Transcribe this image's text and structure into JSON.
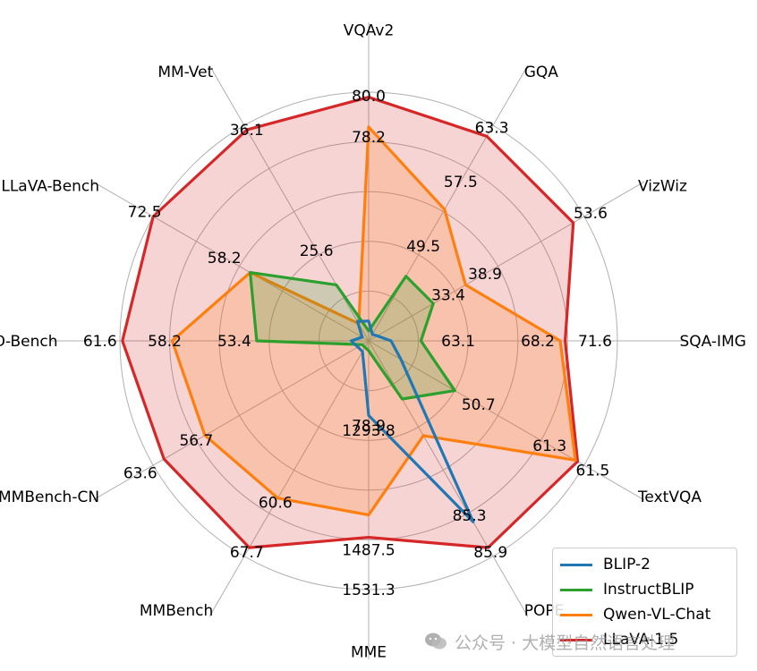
{
  "chart_data": {
    "type": "radar",
    "axes": [
      "VQAv2",
      "GQA",
      "VizWiz",
      "SQA-IMG",
      "TextVQA",
      "POPE",
      "MME",
      "MMBench",
      "MMBench-CN",
      "SEED-Bench",
      "LLaVA-Bench",
      "MM-Vet"
    ],
    "rings": 5,
    "series": [
      {
        "name": "BLIP-2",
        "color": "#1f77b4",
        "fill": false,
        "values": [
          0.08,
          0.03,
          0.04,
          0.09,
          0.15,
          0.84,
          0.3,
          0.05,
          0.05,
          0.07,
          0.03,
          0.09
        ]
      },
      {
        "name": "InstructBLIP",
        "color": "#2ca02c",
        "fill": true,
        "values": [
          0.04,
          0.3,
          0.3,
          0.21,
          0.4,
          0.27,
          0.04,
          0.03,
          0.03,
          0.45,
          0.55,
          0.26
        ]
      },
      {
        "name": "Qwen-VL-Chat",
        "color": "#ff7f0e",
        "fill": true,
        "values": [
          0.86,
          0.61,
          0.45,
          0.77,
          0.96,
          0.44,
          0.7,
          0.73,
          0.76,
          0.79,
          0.55,
          0.08
        ]
      },
      {
        "name": "LLaVA-1.5",
        "color": "#d62728",
        "fill": true,
        "values": [
          0.98,
          0.95,
          0.95,
          0.79,
          0.97,
          0.96,
          0.79,
          0.96,
          0.95,
          0.99,
          1.0,
          0.98
        ]
      }
    ],
    "value_labels": [
      {
        "axis": "VQAv2",
        "text": "80.0",
        "r": 0.985
      },
      {
        "axis": "VQAv2",
        "text": "78.2",
        "r": 0.82
      },
      {
        "axis": "GQA",
        "text": "63.3",
        "r": 0.99
      },
      {
        "axis": "GQA",
        "text": "57.5",
        "r": 0.74
      },
      {
        "axis": "GQA",
        "text": "49.5",
        "r": 0.44
      },
      {
        "axis": "VizWiz",
        "text": "53.6",
        "r": 1.03
      },
      {
        "axis": "VizWiz",
        "text": "38.9",
        "r": 0.54
      },
      {
        "axis": "VizWiz",
        "text": "33.4",
        "r": 0.37
      },
      {
        "axis": "SQA-IMG",
        "text": "71.6",
        "r": 0.91
      },
      {
        "axis": "SQA-IMG",
        "text": "68.2",
        "r": 0.68
      },
      {
        "axis": "SQA-IMG",
        "text": "63.1",
        "r": 0.36
      },
      {
        "axis": "TextVQA",
        "text": "61.5",
        "r": 1.04
      },
      {
        "axis": "TextVQA",
        "text": "61.3",
        "r": 0.84
      },
      {
        "axis": "TextVQA",
        "text": "50.7",
        "r": 0.51
      },
      {
        "axis": "POPE",
        "text": "85.9",
        "r": 0.98
      },
      {
        "axis": "POPE",
        "text": "85.3",
        "r": 0.81
      },
      {
        "axis": "MME",
        "text": "1531.3",
        "r": 1.0
      },
      {
        "axis": "MME",
        "text": "1487.5",
        "r": 0.84
      },
      {
        "axis": "MME",
        "text": "1293.8",
        "r": 0.36
      },
      {
        "axis": "MME",
        "text": "78.9",
        "r": 0.34
      },
      {
        "axis": "MMBench",
        "text": "67.7",
        "r": 0.98
      },
      {
        "axis": "MMBench",
        "text": "60.6",
        "r": 0.75
      },
      {
        "axis": "MMBench-CN",
        "text": "63.6",
        "r": 1.06
      },
      {
        "axis": "MMBench-CN",
        "text": "56.7",
        "r": 0.8
      },
      {
        "axis": "SEED-Bench",
        "text": "61.6",
        "r": 1.08
      },
      {
        "axis": "SEED-Bench",
        "text": "58.2",
        "r": 0.82
      },
      {
        "axis": "SEED-Bench",
        "text": "53.4",
        "r": 0.54
      },
      {
        "axis": "LLaVA-Bench",
        "text": "72.5",
        "r": 1.04
      },
      {
        "axis": "LLaVA-Bench",
        "text": "58.2",
        "r": 0.67
      },
      {
        "axis": "MM-Vet",
        "text": "36.1",
        "r": 0.98
      },
      {
        "axis": "MM-Vet",
        "text": "25.6",
        "r": 0.42
      }
    ],
    "legend_position": "bottom-right"
  },
  "watermark": {
    "icon": "wechat-icon",
    "text": "公众号 · 大模型自然语言处理"
  }
}
